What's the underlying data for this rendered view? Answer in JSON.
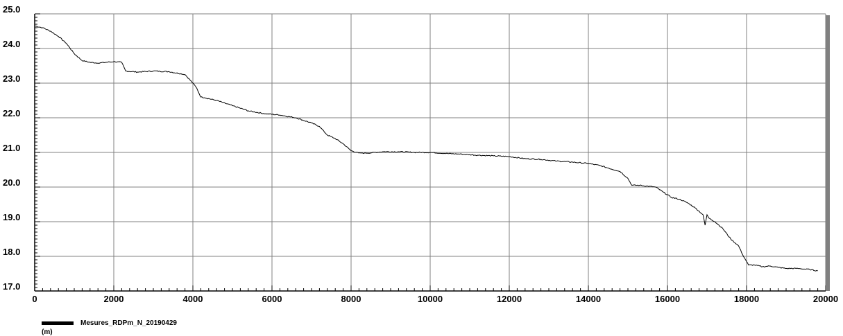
{
  "chart_data": {
    "type": "line",
    "xlim": [
      0,
      20000
    ],
    "ylim": [
      17.0,
      25.0
    ],
    "x_ticks": [
      0,
      2000,
      4000,
      6000,
      8000,
      10000,
      12000,
      14000,
      16000,
      18000,
      20000
    ],
    "x_tick_labels": [
      "0",
      "2000",
      "4000",
      "6000",
      "8000",
      "10000",
      "12000",
      "14000",
      "16000",
      "18000",
      "20000"
    ],
    "y_ticks": [
      17.0,
      18.0,
      19.0,
      20.0,
      21.0,
      22.0,
      23.0,
      24.0,
      25.0
    ],
    "y_tick_labels": [
      "17.0",
      "18.0",
      "19.0",
      "20.0",
      "21.0",
      "22.0",
      "23.0",
      "24.0",
      "25.0"
    ],
    "grid": true,
    "legend_position": "bottom-left",
    "series": [
      {
        "name": "Mesures_RDPm_N_20190429",
        "color": "#000000",
        "x": [
          0,
          200,
          400,
          600,
          800,
          1000,
          1200,
          1400,
          1600,
          1800,
          2000,
          2200,
          2300,
          2600,
          3000,
          3400,
          3800,
          4000,
          4100,
          4200,
          4300,
          4600,
          5000,
          5400,
          5800,
          6200,
          6600,
          7000,
          7200,
          7400,
          7600,
          7800,
          8000,
          8200,
          8400,
          8800,
          9200,
          9600,
          10000,
          10400,
          10800,
          11200,
          11600,
          12000,
          12400,
          12800,
          13200,
          13600,
          14000,
          14300,
          14500,
          14800,
          15000,
          15100,
          15300,
          15700,
          15900,
          16100,
          16300,
          16500,
          16700,
          16900,
          16950,
          17000,
          17050,
          17200,
          17400,
          17600,
          17800,
          17900,
          18000,
          18050,
          18200,
          18400,
          18600,
          18800,
          19000,
          19300,
          19600,
          19800
        ],
        "y": [
          24.65,
          24.6,
          24.5,
          24.35,
          24.15,
          23.85,
          23.65,
          23.6,
          23.58,
          23.6,
          23.62,
          23.6,
          23.35,
          23.32,
          23.35,
          23.33,
          23.25,
          23.0,
          22.85,
          22.6,
          22.58,
          22.5,
          22.35,
          22.2,
          22.12,
          22.08,
          22.0,
          21.85,
          21.75,
          21.5,
          21.4,
          21.25,
          21.05,
          20.98,
          20.98,
          21.02,
          21.02,
          21.0,
          21.0,
          20.97,
          20.95,
          20.92,
          20.9,
          20.88,
          20.82,
          20.8,
          20.75,
          20.72,
          20.68,
          20.62,
          20.55,
          20.45,
          20.25,
          20.05,
          20.05,
          20.0,
          19.85,
          19.7,
          19.65,
          19.55,
          19.4,
          19.2,
          18.9,
          19.2,
          19.1,
          19.0,
          18.8,
          18.5,
          18.3,
          18.05,
          17.85,
          17.75,
          17.75,
          17.7,
          17.72,
          17.68,
          17.65,
          17.65,
          17.62,
          17.58
        ]
      }
    ],
    "legend_unit": "(m)"
  }
}
